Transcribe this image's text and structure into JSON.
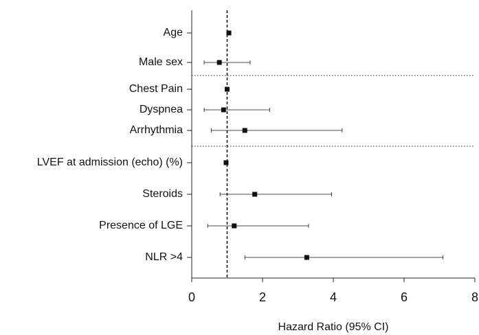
{
  "chart_data": {
    "type": "forest",
    "x_label": "Hazard Ratio (95% CI)",
    "categories": [
      "Age",
      "Male sex",
      "Chest Pain",
      "Dyspnea",
      "Arrhythmia",
      "LVEF at admission (echo) (%)",
      "Steroids",
      "Presence of LGE",
      "NLR >4"
    ],
    "values": [
      1.05,
      0.78,
      1.0,
      0.9,
      1.5,
      0.97,
      1.78,
      1.2,
      3.25
    ],
    "lower": [
      1.02,
      0.35,
      0.97,
      0.35,
      0.55,
      0.95,
      0.8,
      0.45,
      1.5
    ],
    "upper": [
      1.08,
      1.65,
      1.03,
      2.2,
      4.25,
      0.99,
      3.95,
      3.3,
      7.1
    ],
    "reference_line": 1,
    "color": "#111111",
    "xlim": [
      0,
      8
    ],
    "xticks": [
      0,
      2,
      4,
      6,
      8
    ]
  }
}
